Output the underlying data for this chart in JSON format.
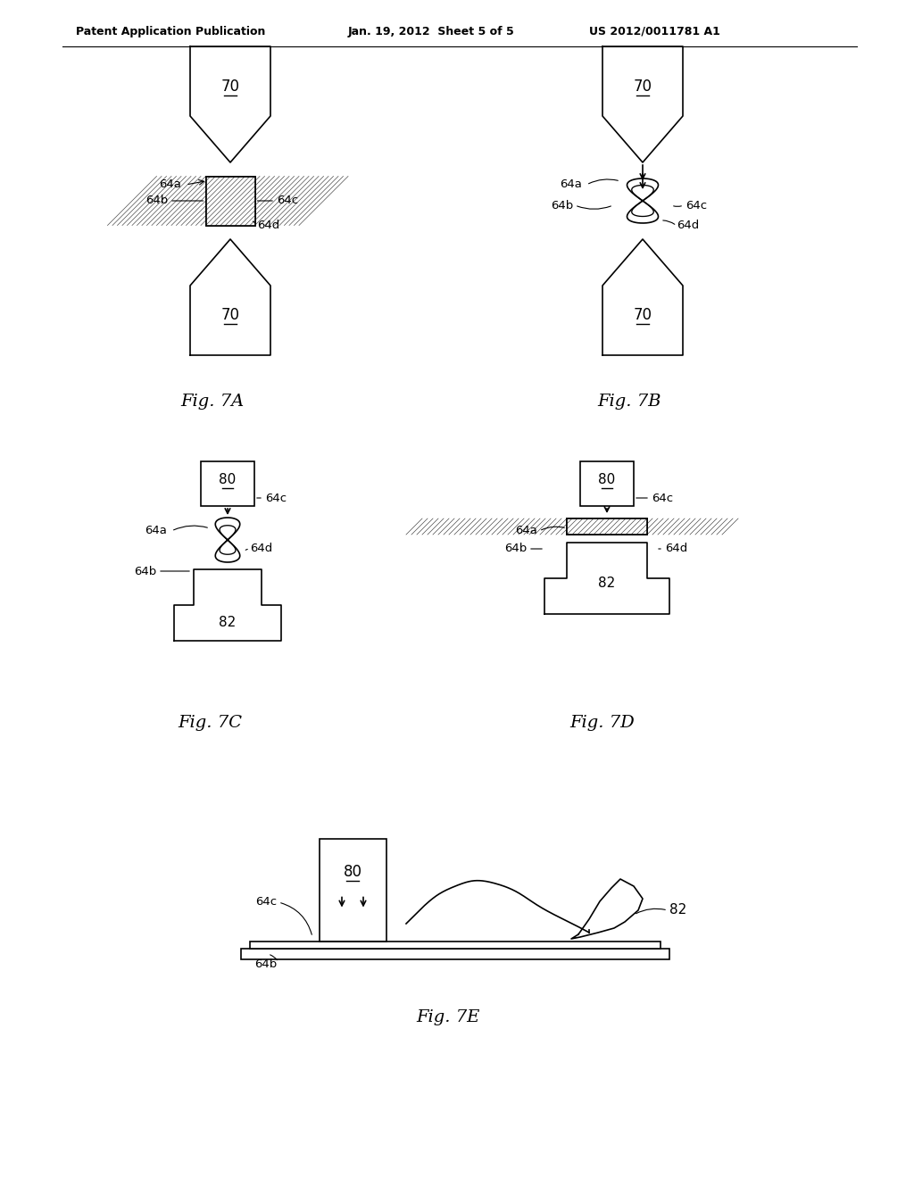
{
  "bg_color": "#ffffff",
  "line_color": "#000000",
  "header_left": "Patent Application Publication",
  "header_mid": "Jan. 19, 2012  Sheet 5 of 5",
  "header_right": "US 2012/0011781 A1",
  "fig_labels": [
    "Fig. 7A",
    "Fig. 7B",
    "Fig. 7C",
    "Fig. 7D",
    "Fig. 7E"
  ]
}
